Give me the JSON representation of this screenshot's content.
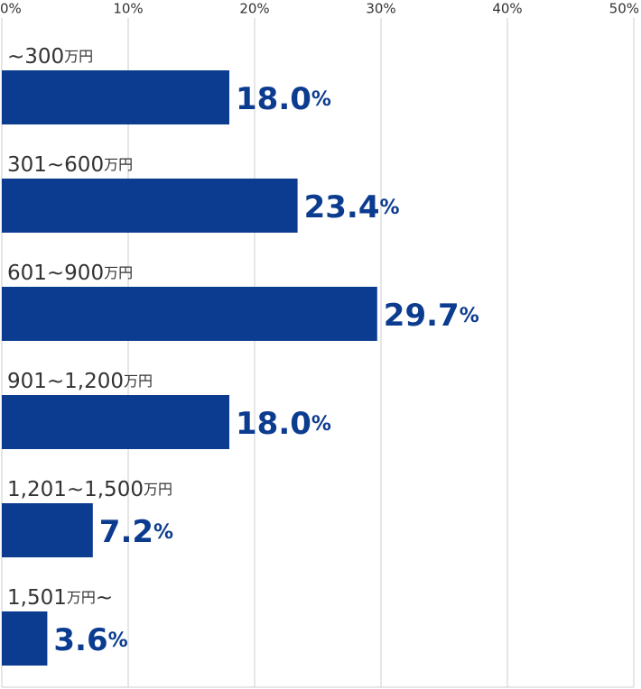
{
  "chart_data": {
    "type": "bar",
    "orientation": "horizontal",
    "categories": [
      "~300万円",
      "301~600万円",
      "601~900万円",
      "901~1,200万円",
      "1,201~1,500万円",
      "1,501万円~"
    ],
    "values": [
      18.0,
      23.4,
      29.7,
      18.0,
      7.2,
      3.6
    ],
    "value_labels": [
      "18.0%",
      "23.4%",
      "29.7%",
      "18.0%",
      "7.2%",
      "3.6%"
    ],
    "color": "#0c3c8f",
    "xlim": [
      0,
      50
    ],
    "xticks": [
      {
        "value": 0,
        "label": "0%"
      },
      {
        "value": 10,
        "label": "10%"
      },
      {
        "value": 20,
        "label": "20%"
      },
      {
        "value": 30,
        "label": "30%"
      },
      {
        "value": 40,
        "label": "40%"
      },
      {
        "value": 50,
        "label": "50%"
      }
    ],
    "grid": true
  }
}
